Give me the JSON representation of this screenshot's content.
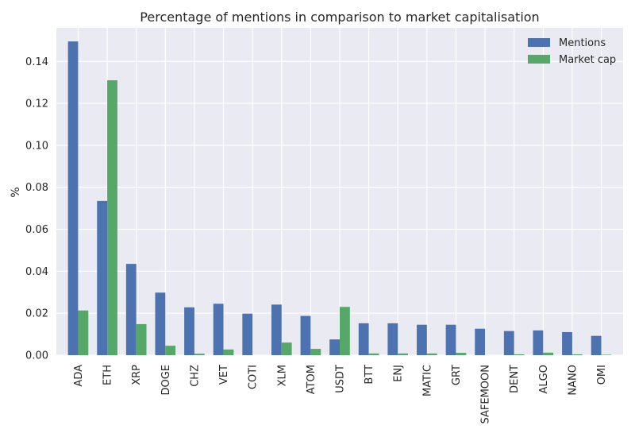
{
  "chart_data": {
    "type": "bar",
    "title": "Percentage of mentions in comparison to market capitalisation",
    "xlabel": "",
    "ylabel": "%",
    "categories": [
      "ADA",
      "ETH",
      "XRP",
      "DOGE",
      "CHZ",
      "VET",
      "COTI",
      "XLM",
      "ATOM",
      "USDT",
      "BTT",
      "ENJ",
      "MATIC",
      "GRT",
      "SAFEMOON",
      "DENT",
      "ALGO",
      "NANO",
      "OMI"
    ],
    "series": [
      {
        "name": "Mentions",
        "color": "#4c72b0",
        "values": [
          0.1495,
          0.0735,
          0.0435,
          0.0298,
          0.0228,
          0.0245,
          0.0198,
          0.0241,
          0.0187,
          0.0075,
          0.0152,
          0.0152,
          0.0145,
          0.0145,
          0.0126,
          0.0115,
          0.0118,
          0.011,
          0.0092
        ]
      },
      {
        "name": "Market cap",
        "color": "#55a868",
        "values": [
          0.0213,
          0.131,
          0.0148,
          0.0045,
          0.0007,
          0.0027,
          0.0,
          0.006,
          0.003,
          0.023,
          0.0008,
          0.0008,
          0.0008,
          0.0011,
          0.0,
          0.0004,
          0.0012,
          0.0004,
          0.0002
        ]
      }
    ],
    "ylim": [
      0,
      0.156
    ],
    "yticks": [
      "0.00",
      "0.02",
      "0.04",
      "0.06",
      "0.08",
      "0.10",
      "0.12",
      "0.14"
    ],
    "ytick_values": [
      0,
      0.02,
      0.04,
      0.06,
      0.08,
      0.1,
      0.12,
      0.14
    ],
    "grid": true,
    "legend_position": "top-right",
    "background_color": "#eaeaf2",
    "grid_color": "#ffffff"
  }
}
